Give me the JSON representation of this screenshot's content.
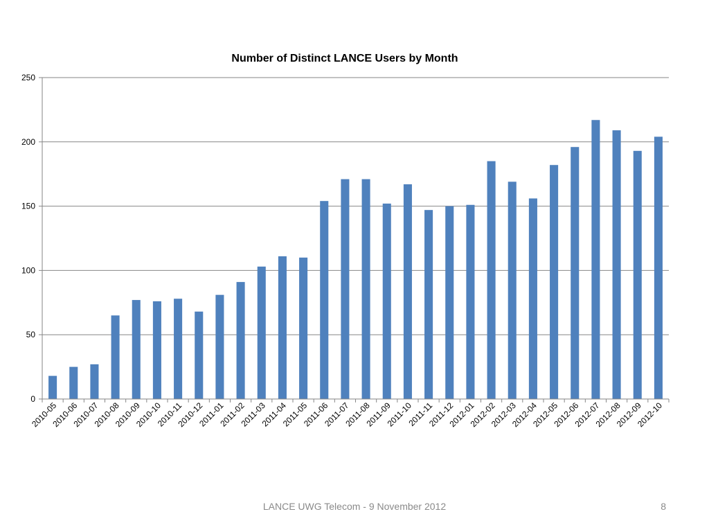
{
  "slide": {
    "footer": "LANCE UWG Telecom - 9 November 2012",
    "page_number": "8"
  },
  "colors": {
    "bar": "#4F81BD",
    "gridline": "#868686",
    "axis": "#868686",
    "text": "#000000",
    "footer_text": "#8a8a8a"
  },
  "chart_data": {
    "type": "bar",
    "title": "Number of Distinct LANCE Users by Month",
    "xlabel": "",
    "ylabel": "",
    "ylim": [
      0,
      250
    ],
    "yticks": [
      0,
      50,
      100,
      150,
      200,
      250
    ],
    "grid": true,
    "legend": "none",
    "categories": [
      "2010-05",
      "2010-06",
      "2010-07",
      "2010-08",
      "2010-09",
      "2010-10",
      "2010-11",
      "2010-12",
      "2011-01",
      "2011-02",
      "2011-03",
      "2011-04",
      "2011-05",
      "2011-06",
      "2011-07",
      "2011-08",
      "2011-09",
      "2011-10",
      "2011-11",
      "2011-12",
      "2012-01",
      "2012-02",
      "2012-03",
      "2012-04",
      "2012-05",
      "2012-06",
      "2012-07",
      "2012-08",
      "2012-09",
      "2012-10"
    ],
    "values": [
      18,
      25,
      27,
      65,
      77,
      76,
      78,
      68,
      81,
      91,
      103,
      111,
      110,
      154,
      171,
      171,
      152,
      167,
      147,
      150,
      151,
      185,
      169,
      156,
      182,
      196,
      217,
      209,
      193,
      204
    ]
  }
}
